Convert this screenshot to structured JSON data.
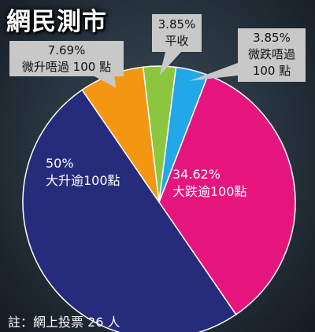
{
  "chart_data": {
    "type": "pie",
    "title": "網民測市",
    "note": "註：網上投票 26 人",
    "slices": [
      {
        "percent_label": "34.62%",
        "label": "大跌逾100點",
        "value": 34.62,
        "color": "#e5157d"
      },
      {
        "percent_label": "50%",
        "label": "大升逾100點",
        "value": 50,
        "color": "#262b7c"
      },
      {
        "percent_label": "7.69%",
        "label": "微升唔過 100 點",
        "value": 7.69,
        "color": "#f39712"
      },
      {
        "percent_label": "3.85%",
        "label": "平收",
        "value": 3.85,
        "color": "#8cc63e"
      },
      {
        "percent_label": "3.85%",
        "label": "微跌唔過 100 點",
        "value": 3.85,
        "color": "#22a7e8"
      }
    ]
  }
}
